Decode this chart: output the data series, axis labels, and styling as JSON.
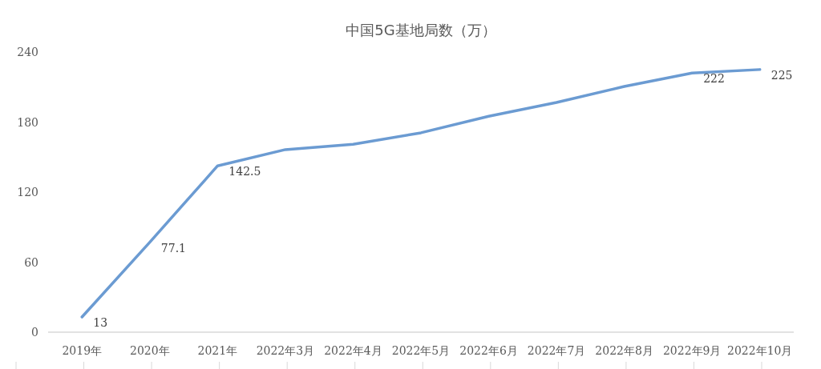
{
  "chart_data": {
    "type": "line",
    "title": "中国5G基地局数（万）",
    "categories": [
      "2019年",
      "2020年",
      "2021年",
      "2022年3月",
      "2022年4月",
      "2022年5月",
      "2022年6月",
      "2022年7月",
      "2022年8月",
      "2022年9月",
      "2022年10月"
    ],
    "values": [
      13,
      77.1,
      142.5,
      156.4,
      161,
      170.8,
      185,
      196.8,
      210.5,
      222,
      225
    ],
    "value_labels": [
      "13",
      "77.1",
      "142.5",
      null,
      null,
      null,
      null,
      null,
      null,
      "222",
      "225"
    ],
    "color": "#6b9bd2",
    "ylim": [
      0,
      240
    ],
    "yticks": [
      0,
      60,
      120,
      180,
      240
    ],
    "grid": false,
    "marker": "none",
    "line_style": "solid"
  }
}
